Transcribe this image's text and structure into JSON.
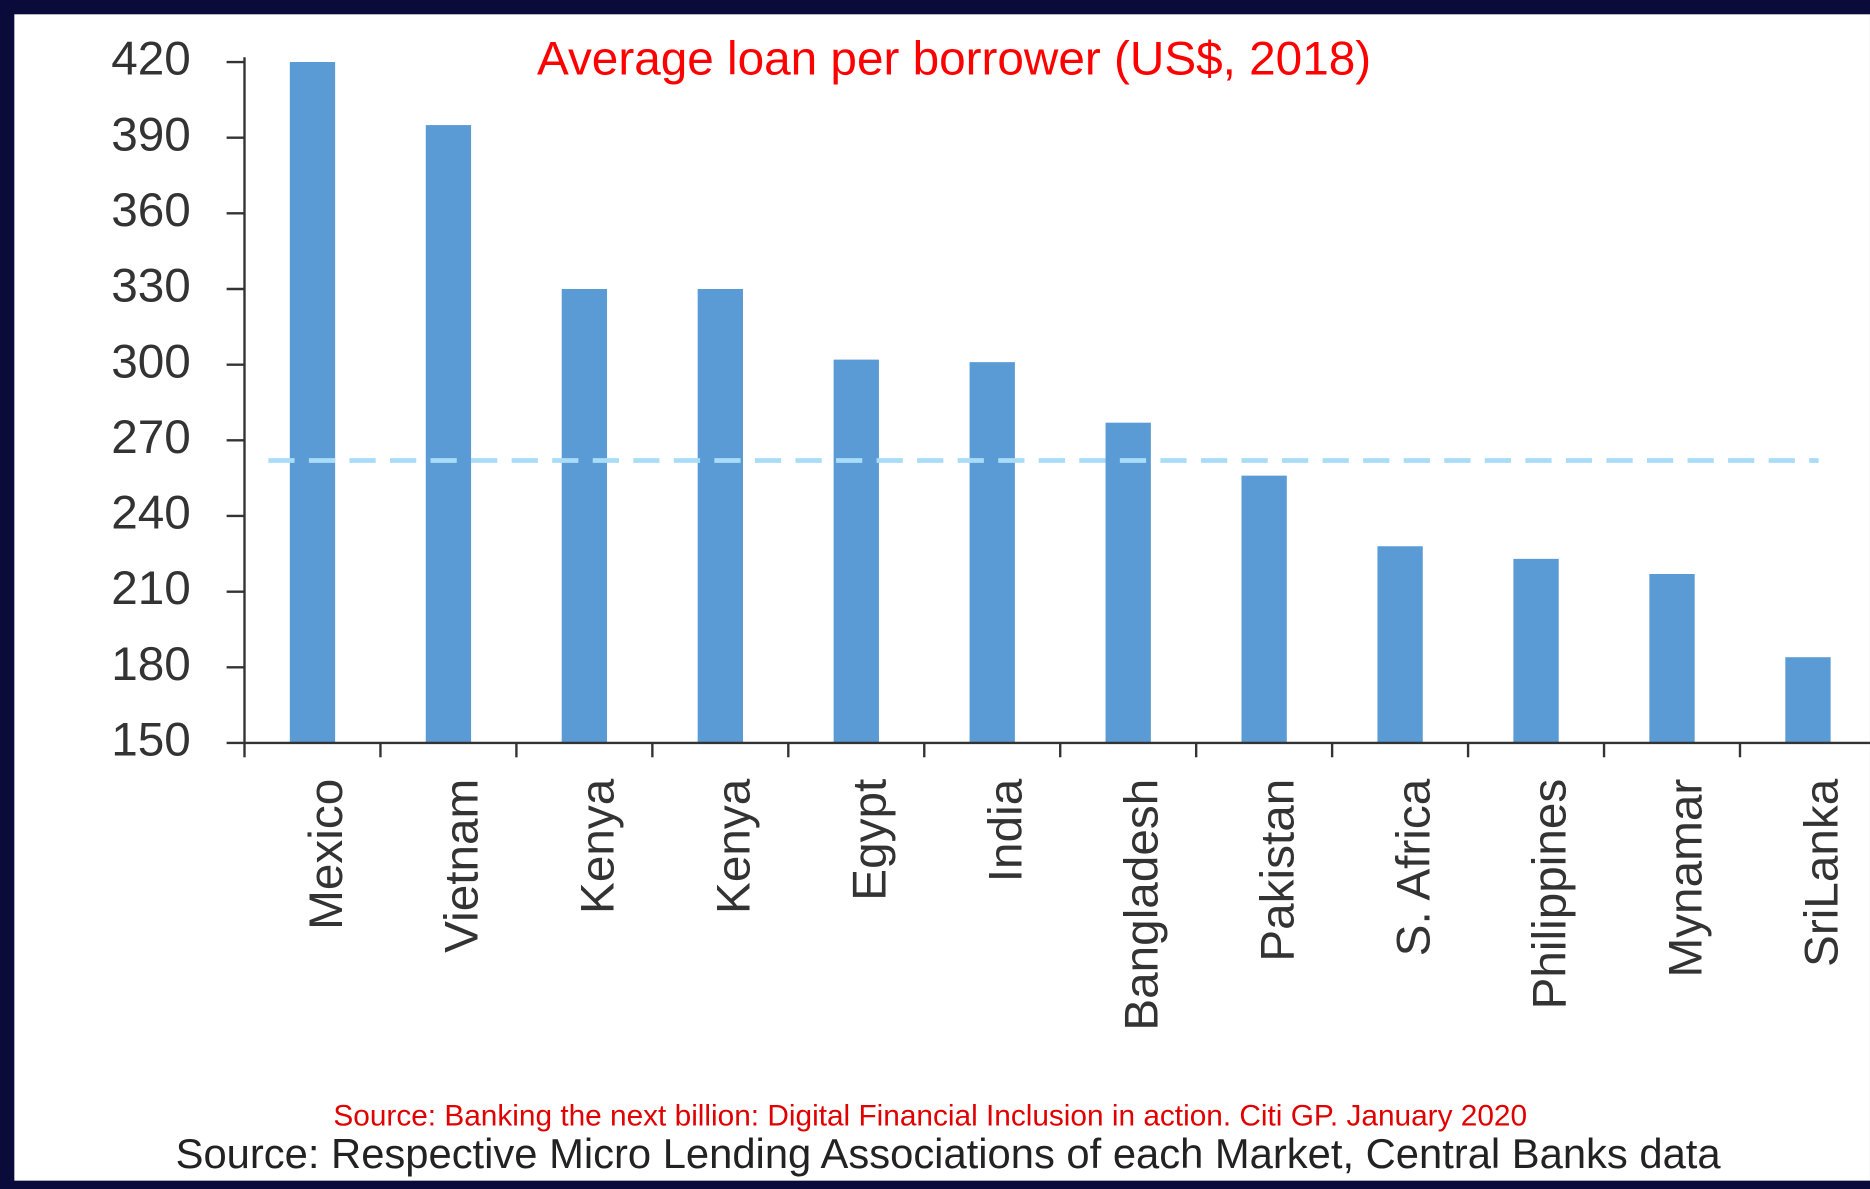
{
  "chart_data": {
    "type": "bar",
    "title": "Average loan per borrower (US$, 2018)",
    "categories": [
      "Mexico",
      "Vietnam",
      "Kenya",
      "Kenya",
      "Egypt",
      "India",
      "Bangladesh",
      "Pakistan",
      "S. Africa",
      "Philippines",
      "Mynamar",
      "SriLanka"
    ],
    "values": [
      420,
      395,
      330,
      330,
      302,
      301,
      277,
      256,
      228,
      223,
      217,
      184
    ],
    "color": "#5b9bd5",
    "ylim": [
      150,
      420
    ],
    "yticks": [
      150,
      180,
      210,
      240,
      270,
      300,
      330,
      360,
      390,
      420
    ],
    "average_line": {
      "value": 262,
      "color": "#a9dcf7"
    },
    "source_note": "Source: Banking the next billion: Digital Financial Inclusion in action. Citi GP. January 2020",
    "source": "Source: Respective Micro Lending Associations of each Market, Central Banks data"
  }
}
